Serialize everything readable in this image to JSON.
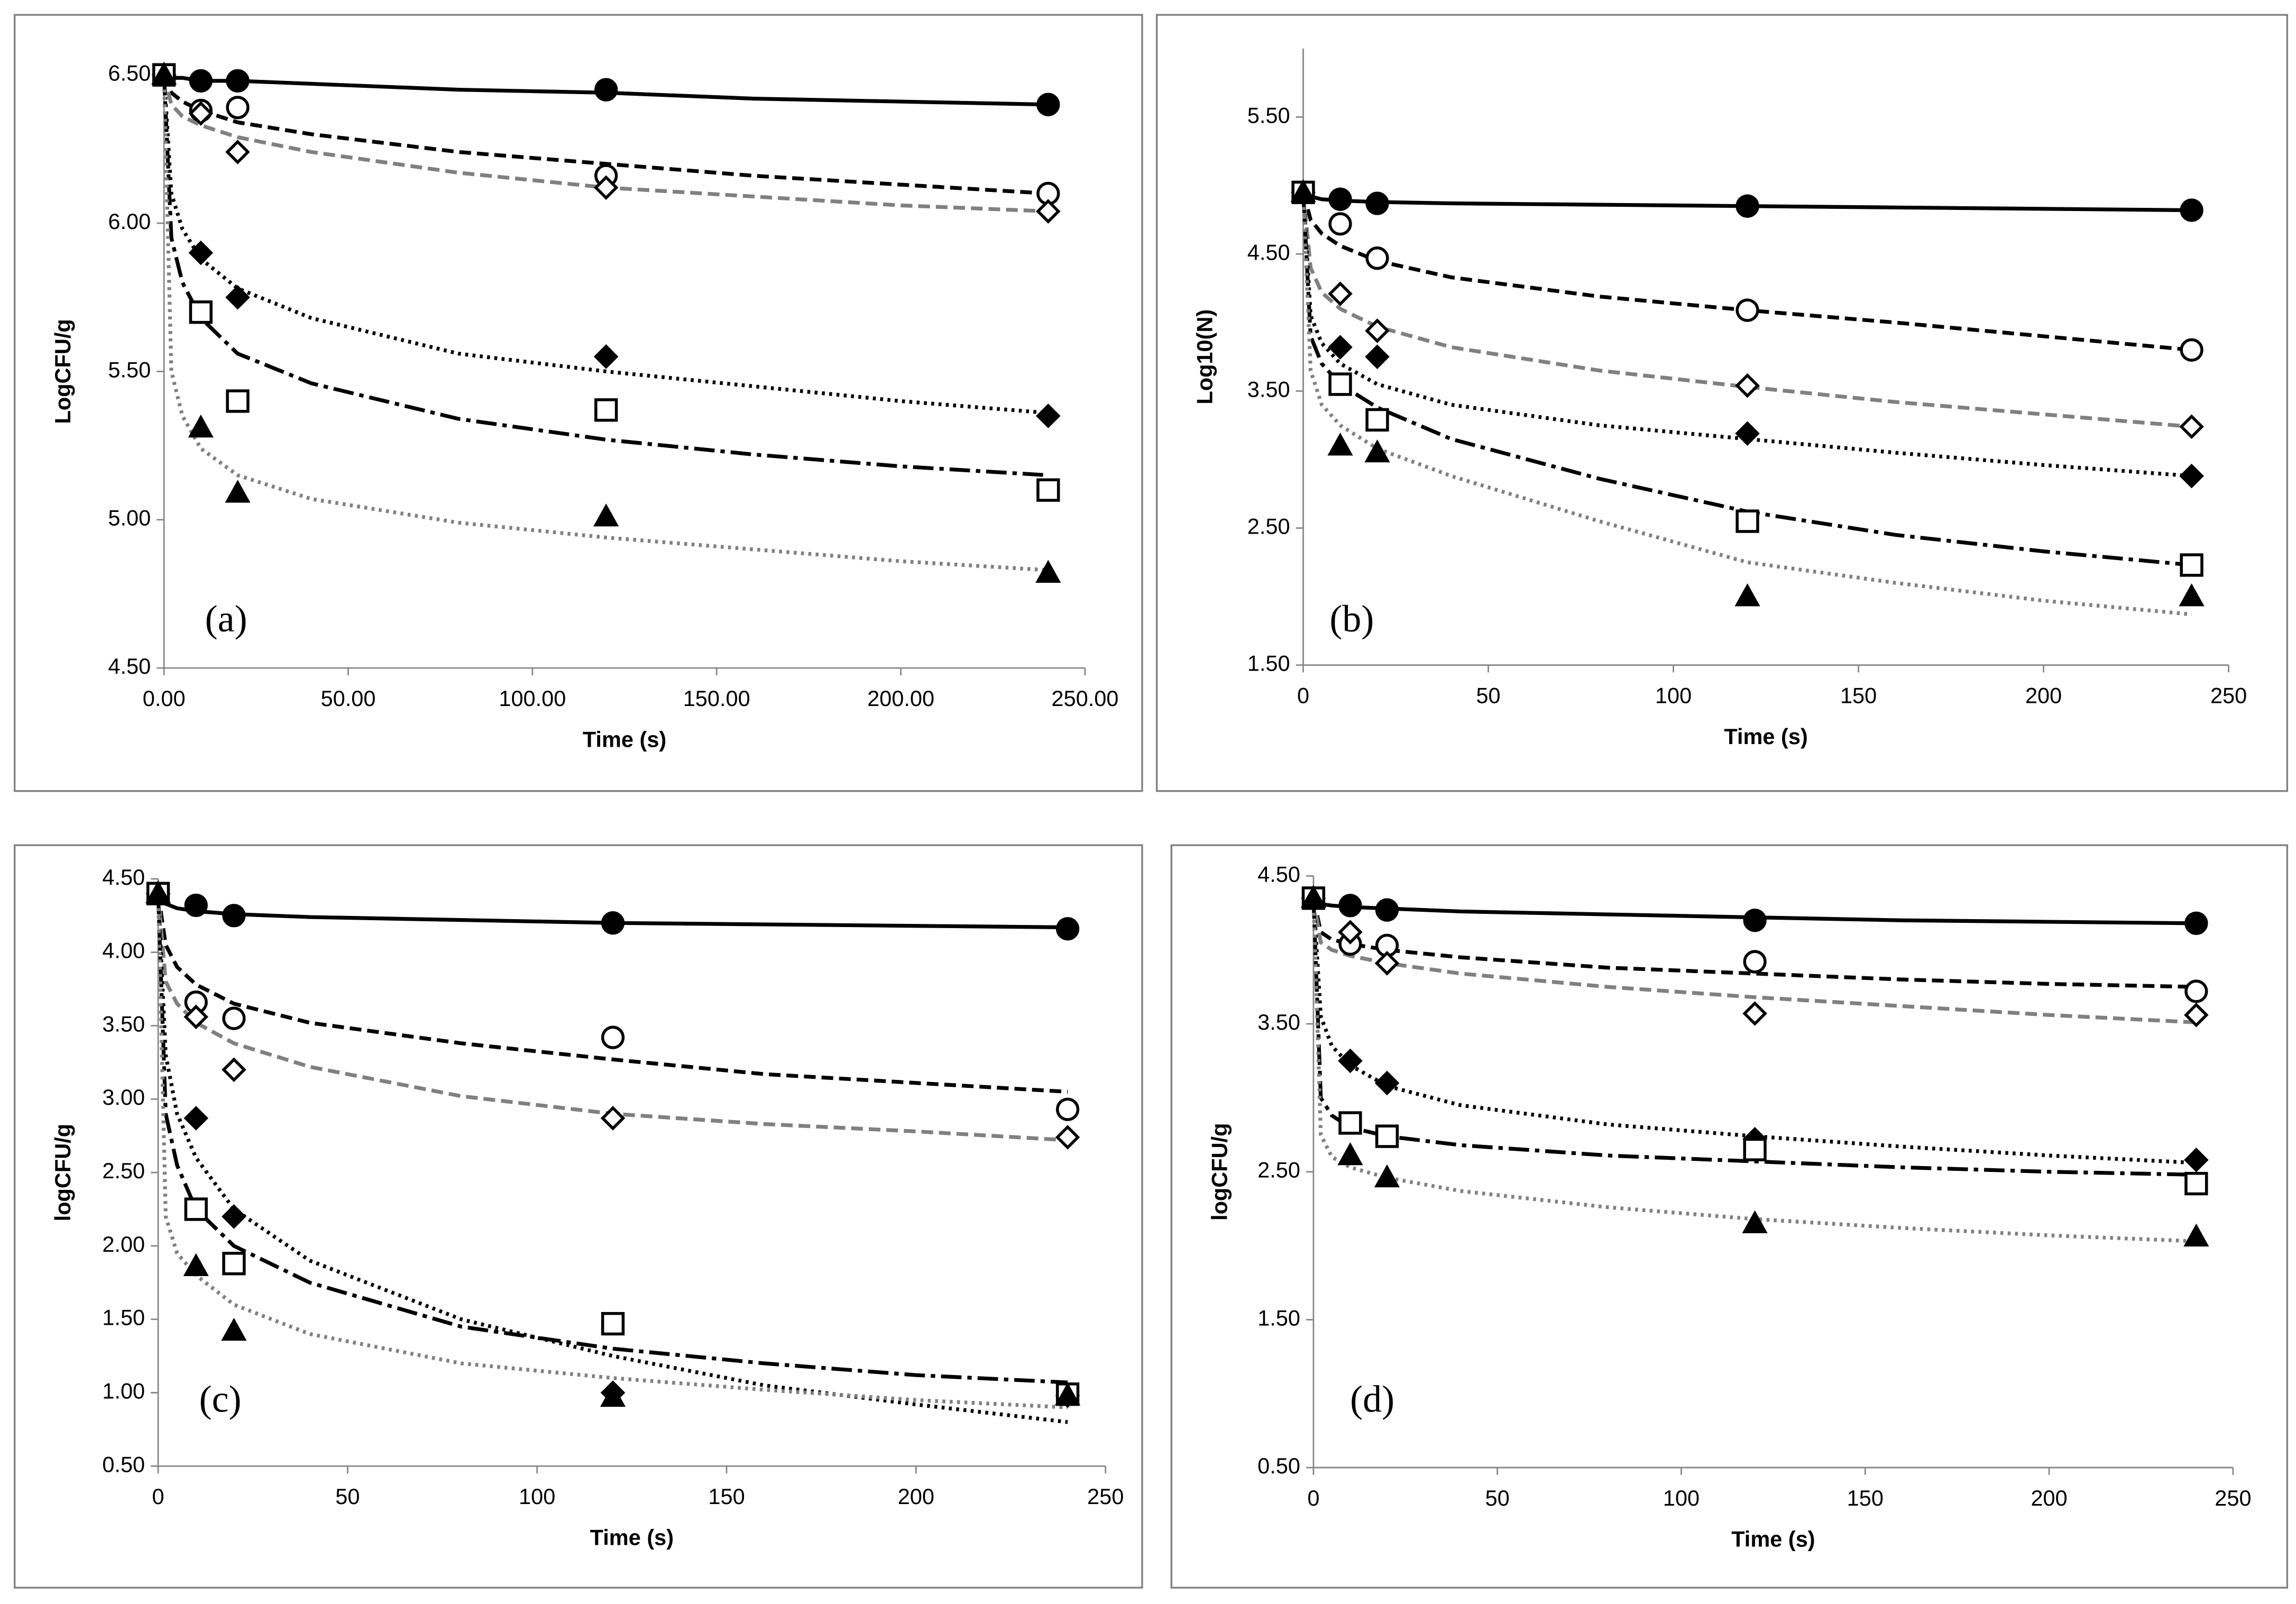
{
  "chart_data": [
    {
      "type": "scatter",
      "annotation": "(a)",
      "x_label": "Time (s)",
      "y_label": "LogCFU/g",
      "xlim": [
        0,
        250
      ],
      "ylim": [
        4.5,
        6.5
      ],
      "xticks": [
        {
          "value": 0,
          "label": "0.00"
        },
        {
          "value": 50,
          "label": "50.00"
        },
        {
          "value": 100,
          "label": "100.00"
        },
        {
          "value": 150,
          "label": "150.00"
        },
        {
          "value": 200,
          "label": "200.00"
        },
        {
          "value": 250,
          "label": "250.00"
        }
      ],
      "yticks": [
        {
          "value": 4.5,
          "label": "4.50"
        },
        {
          "value": 5,
          "label": "5.00"
        },
        {
          "value": 5.5,
          "label": "5.50"
        },
        {
          "value": 6,
          "label": "6.00"
        },
        {
          "value": 6.5,
          "label": "6.50"
        }
      ],
      "x": [
        0,
        10,
        20,
        120,
        240
      ],
      "fit_x": [
        0,
        2,
        5,
        10,
        20,
        40,
        80,
        120,
        160,
        200,
        240
      ],
      "series": [
        {
          "marker": "circle",
          "marker_fill": "#000000",
          "color": "#000000",
          "line_color": "#000000",
          "line_dash": "solid",
          "values": [
            6.5,
            6.48,
            6.48,
            6.45,
            6.4
          ],
          "fit": [
            6.5,
            6.49,
            6.49,
            6.48,
            6.48,
            6.47,
            6.45,
            6.44,
            6.42,
            6.41,
            6.4
          ]
        },
        {
          "marker": "circle",
          "marker_fill": "#ffffff",
          "color": "#000000",
          "line_color": "#000000",
          "line_dash": "dashed",
          "values": [
            6.5,
            6.38,
            6.39,
            6.16,
            6.1
          ],
          "fit": [
            6.5,
            6.44,
            6.41,
            6.38,
            6.34,
            6.3,
            6.24,
            6.2,
            6.16,
            6.13,
            6.1
          ]
        },
        {
          "marker": "diamond",
          "marker_fill": "#ffffff",
          "color": "#000000",
          "line_color": "#808080",
          "line_dash": "dashed",
          "values": [
            6.5,
            6.37,
            6.24,
            6.12,
            6.04
          ],
          "fit": [
            6.5,
            6.4,
            6.36,
            6.33,
            6.29,
            6.24,
            6.17,
            6.12,
            6.09,
            6.06,
            6.04
          ]
        },
        {
          "marker": "diamond",
          "marker_fill": "#000000",
          "color": "#000000",
          "line_color": "#000000",
          "line_dash": "dotted",
          "values": [
            6.5,
            5.9,
            5.75,
            5.55,
            5.35
          ],
          "fit": [
            6.5,
            6.1,
            5.98,
            5.88,
            5.78,
            5.68,
            5.56,
            5.5,
            5.45,
            5.4,
            5.36
          ]
        },
        {
          "marker": "square",
          "marker_fill": "#ffffff",
          "color": "#000000",
          "line_color": "#000000",
          "line_dash": "dashdot",
          "values": [
            6.5,
            5.7,
            5.4,
            5.37,
            5.1
          ],
          "fit": [
            6.5,
            5.95,
            5.8,
            5.68,
            5.56,
            5.46,
            5.34,
            5.27,
            5.22,
            5.18,
            5.15
          ]
        },
        {
          "marker": "triangle",
          "marker_fill": "#000000",
          "color": "#000000",
          "line_color": "#808080",
          "line_dash": "dotted",
          "values": [
            6.5,
            5.31,
            5.09,
            5.01,
            4.82
          ],
          "fit": [
            6.5,
            5.5,
            5.35,
            5.24,
            5.15,
            5.07,
            4.99,
            4.94,
            4.9,
            4.86,
            4.83
          ]
        }
      ]
    },
    {
      "type": "scatter",
      "annotation": "(b)",
      "x_label": "Time (s)",
      "y_label": "Log10(N)",
      "xlim": [
        0,
        250
      ],
      "ylim": [
        1.5,
        6.0
      ],
      "xticks": [
        0,
        50,
        100,
        150,
        200,
        250
      ],
      "yticks": [
        {
          "value": 1.5,
          "label": "1.50"
        },
        {
          "value": 2.5,
          "label": "2.50"
        },
        {
          "value": 3.5,
          "label": "3.50"
        },
        {
          "value": 4.5,
          "label": "4.50"
        },
        {
          "value": 5.5,
          "label": "5.50"
        }
      ],
      "x": [
        0,
        10,
        20,
        120,
        240
      ],
      "fit_x": [
        0,
        2,
        5,
        10,
        20,
        40,
        80,
        120,
        160,
        200,
        240
      ],
      "series": [
        {
          "marker": "circle",
          "marker_fill": "#000000",
          "color": "#000000",
          "line_color": "#000000",
          "line_dash": "solid",
          "values": [
            4.95,
            4.9,
            4.87,
            4.85,
            4.82
          ],
          "fit": [
            4.95,
            4.92,
            4.9,
            4.89,
            4.88,
            4.87,
            4.86,
            4.85,
            4.84,
            4.83,
            4.82
          ]
        },
        {
          "marker": "circle",
          "marker_fill": "#ffffff",
          "color": "#000000",
          "line_color": "#000000",
          "line_dash": "dashed",
          "values": [
            4.95,
            4.72,
            4.47,
            4.09,
            3.8
          ],
          "fit": [
            4.95,
            4.75,
            4.65,
            4.56,
            4.45,
            4.33,
            4.19,
            4.09,
            4.0,
            3.9,
            3.8
          ]
        },
        {
          "marker": "diamond",
          "marker_fill": "#ffffff",
          "color": "#000000",
          "line_color": "#808080",
          "line_dash": "dashed",
          "values": [
            4.95,
            4.21,
            3.94,
            3.54,
            3.24
          ],
          "fit": [
            4.95,
            4.4,
            4.22,
            4.1,
            3.97,
            3.82,
            3.65,
            3.53,
            3.42,
            3.33,
            3.24
          ]
        },
        {
          "marker": "diamond",
          "marker_fill": "#000000",
          "color": "#000000",
          "line_color": "#000000",
          "line_dash": "dotted",
          "values": [
            4.95,
            3.82,
            3.75,
            3.19,
            2.88
          ],
          "fit": [
            4.95,
            4.05,
            3.85,
            3.7,
            3.55,
            3.4,
            3.25,
            3.15,
            3.05,
            2.96,
            2.88
          ]
        },
        {
          "marker": "square",
          "marker_fill": "#ffffff",
          "color": "#000000",
          "line_color": "#000000",
          "line_dash": "dashdot",
          "values": [
            4.95,
            3.55,
            3.29,
            2.55,
            2.23
          ],
          "fit": [
            4.95,
            3.9,
            3.7,
            3.55,
            3.38,
            3.15,
            2.86,
            2.62,
            2.45,
            2.33,
            2.23
          ]
        },
        {
          "marker": "triangle",
          "marker_fill": "#000000",
          "color": "#000000",
          "line_color": "#808080",
          "line_dash": "dotted",
          "values": [
            4.95,
            3.1,
            3.05,
            2.0,
            2.0
          ],
          "fit": [
            4.95,
            3.65,
            3.4,
            3.25,
            3.08,
            2.88,
            2.55,
            2.25,
            2.1,
            1.97,
            1.87
          ]
        }
      ]
    },
    {
      "type": "scatter",
      "annotation": "(c)",
      "x_label": "Time (s)",
      "y_label": "logCFU/g",
      "xlim": [
        0,
        250
      ],
      "ylim": [
        0.5,
        4.5
      ],
      "xticks": [
        0,
        50,
        100,
        150,
        200,
        250
      ],
      "yticks": [
        {
          "value": 0.5,
          "label": "0.50"
        },
        {
          "value": 1,
          "label": "1.00"
        },
        {
          "value": 1.5,
          "label": "1.50"
        },
        {
          "value": 2,
          "label": "2.00"
        },
        {
          "value": 2.5,
          "label": "2.50"
        },
        {
          "value": 3,
          "label": "3.00"
        },
        {
          "value": 3.5,
          "label": "3.50"
        },
        {
          "value": 4,
          "label": "4.00"
        },
        {
          "value": 4.5,
          "label": "4.50"
        }
      ],
      "x": [
        0,
        10,
        20,
        120,
        240
      ],
      "fit_x": [
        0,
        2,
        5,
        10,
        20,
        40,
        80,
        120,
        160,
        200,
        240
      ],
      "series": [
        {
          "marker": "circle",
          "marker_fill": "#000000",
          "color": "#000000",
          "line_color": "#000000",
          "line_dash": "solid",
          "values": [
            4.4,
            4.32,
            4.25,
            4.2,
            4.16
          ],
          "fit": [
            4.4,
            4.33,
            4.3,
            4.28,
            4.26,
            4.24,
            4.22,
            4.2,
            4.19,
            4.18,
            4.17
          ]
        },
        {
          "marker": "circle",
          "marker_fill": "#ffffff",
          "color": "#000000",
          "line_color": "#000000",
          "line_dash": "dashed",
          "values": [
            4.4,
            3.66,
            3.55,
            3.42,
            2.93
          ],
          "fit": [
            4.4,
            4.05,
            3.9,
            3.78,
            3.65,
            3.52,
            3.38,
            3.27,
            3.17,
            3.11,
            3.05
          ]
        },
        {
          "marker": "diamond",
          "marker_fill": "#ffffff",
          "color": "#000000",
          "line_color": "#808080",
          "line_dash": "dashed",
          "values": [
            4.4,
            3.56,
            3.2,
            2.87,
            2.74
          ],
          "fit": [
            4.4,
            3.8,
            3.65,
            3.52,
            3.38,
            3.22,
            3.02,
            2.9,
            2.83,
            2.78,
            2.72
          ]
        },
        {
          "marker": "diamond",
          "marker_fill": "#000000",
          "color": "#000000",
          "line_color": "#000000",
          "line_dash": "dotted",
          "values": [
            4.4,
            2.87,
            2.2,
            1.0,
            0.98
          ],
          "fit": [
            4.4,
            3.3,
            2.9,
            2.6,
            2.25,
            1.9,
            1.5,
            1.25,
            1.05,
            0.92,
            0.8
          ]
        },
        {
          "marker": "square",
          "marker_fill": "#ffffff",
          "color": "#000000",
          "line_color": "#000000",
          "line_dash": "dashdot",
          "values": [
            4.4,
            2.25,
            1.88,
            1.47,
            0.99
          ],
          "fit": [
            4.4,
            2.9,
            2.55,
            2.25,
            2.0,
            1.75,
            1.45,
            1.3,
            1.2,
            1.12,
            1.07
          ]
        },
        {
          "marker": "triangle",
          "marker_fill": "#000000",
          "color": "#000000",
          "line_color": "#808080",
          "line_dash": "dotted",
          "values": [
            4.4,
            1.86,
            1.42,
            0.97,
            0.98
          ],
          "fit": [
            4.4,
            2.2,
            1.95,
            1.8,
            1.6,
            1.4,
            1.2,
            1.1,
            1.02,
            0.95,
            0.9
          ]
        }
      ]
    },
    {
      "type": "scatter",
      "annotation": "(d)",
      "x_label": "Time (s)",
      "y_label": "logCFU/g",
      "xlim": [
        0,
        250
      ],
      "ylim": [
        0.5,
        4.5
      ],
      "xticks": [
        0,
        50,
        100,
        150,
        200,
        250
      ],
      "yticks": [
        {
          "value": 0.5,
          "label": "0.50"
        },
        {
          "value": 1.5,
          "label": "1.50"
        },
        {
          "value": 2.5,
          "label": "2.50"
        },
        {
          "value": 3.5,
          "label": "3.50"
        },
        {
          "value": 4.5,
          "label": "4.50"
        }
      ],
      "x": [
        0,
        10,
        20,
        120,
        240
      ],
      "fit_x": [
        0,
        2,
        5,
        10,
        20,
        40,
        80,
        120,
        160,
        200,
        240
      ],
      "series": [
        {
          "marker": "circle",
          "marker_fill": "#000000",
          "color": "#000000",
          "line_color": "#000000",
          "line_dash": "solid",
          "values": [
            4.35,
            4.3,
            4.27,
            4.2,
            4.18
          ],
          "fit": [
            4.35,
            4.31,
            4.3,
            4.29,
            4.28,
            4.26,
            4.24,
            4.22,
            4.2,
            4.19,
            4.18
          ]
        },
        {
          "marker": "circle",
          "marker_fill": "#ffffff",
          "color": "#000000",
          "line_color": "#000000",
          "line_dash": "dashed",
          "values": [
            4.35,
            4.04,
            4.03,
            3.92,
            3.72
          ],
          "fit": [
            4.35,
            4.12,
            4.07,
            4.04,
            4.0,
            3.95,
            3.88,
            3.84,
            3.8,
            3.77,
            3.75
          ]
        },
        {
          "marker": "diamond",
          "marker_fill": "#ffffff",
          "color": "#000000",
          "line_color": "#808080",
          "line_dash": "dashed",
          "values": [
            4.35,
            4.12,
            3.91,
            3.57,
            3.56
          ],
          "fit": [
            4.35,
            4.05,
            4.0,
            3.96,
            3.91,
            3.84,
            3.75,
            3.68,
            3.62,
            3.56,
            3.51
          ]
        },
        {
          "marker": "diamond",
          "marker_fill": "#000000",
          "color": "#000000",
          "line_color": "#000000",
          "line_dash": "dotted",
          "values": [
            4.35,
            3.25,
            3.1,
            2.72,
            2.58
          ],
          "fit": [
            4.35,
            3.55,
            3.35,
            3.22,
            3.08,
            2.95,
            2.82,
            2.74,
            2.67,
            2.61,
            2.56
          ]
        },
        {
          "marker": "square",
          "marker_fill": "#ffffff",
          "color": "#000000",
          "line_color": "#000000",
          "line_dash": "dashdot",
          "values": [
            4.35,
            2.83,
            2.74,
            2.65,
            2.42
          ],
          "fit": [
            4.35,
            3.0,
            2.88,
            2.8,
            2.74,
            2.68,
            2.61,
            2.57,
            2.53,
            2.5,
            2.48
          ]
        },
        {
          "marker": "triangle",
          "marker_fill": "#000000",
          "color": "#000000",
          "line_color": "#808080",
          "line_dash": "dotted",
          "values": [
            4.35,
            2.61,
            2.46,
            2.15,
            2.06
          ],
          "fit": [
            4.35,
            2.75,
            2.6,
            2.53,
            2.46,
            2.37,
            2.26,
            2.18,
            2.12,
            2.07,
            2.03
          ]
        }
      ]
    }
  ]
}
